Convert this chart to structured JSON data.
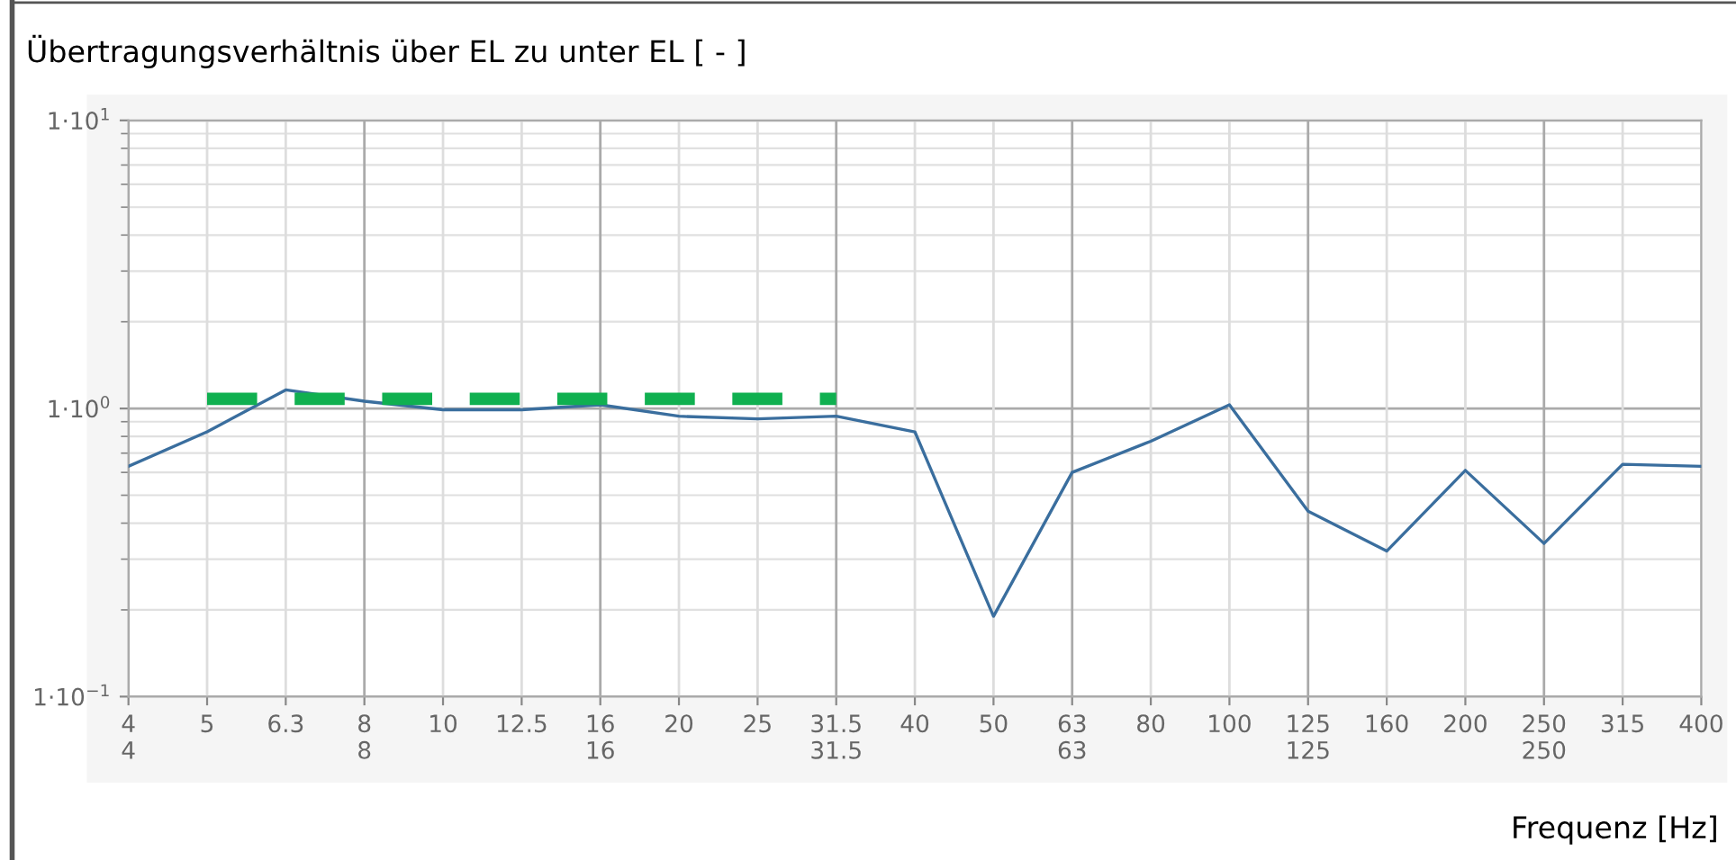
{
  "chart_data": {
    "type": "line",
    "title": "Übertragungsverhältnis über EL zu unter EL [ - ]",
    "xlabel": "Frequenz [Hz]",
    "categories": [
      "4\n4",
      "5",
      "6.3",
      "8\n8",
      "10",
      "12.5",
      "16\n16",
      "20",
      "25",
      "31.5\n31.5",
      "40",
      "50",
      "63\n63",
      "80",
      "100",
      "125\n125",
      "160",
      "200",
      "250\n250",
      "315",
      "400"
    ],
    "series": [
      {
        "color": "#3a6e9e",
        "values": [
          0.63,
          0.83,
          1.16,
          1.06,
          0.99,
          0.99,
          1.03,
          0.94,
          0.92,
          0.94,
          0.83,
          0.19,
          0.6,
          0.77,
          1.03,
          0.44,
          0.32,
          0.61,
          0.34,
          0.64,
          0.63
        ]
      },
      {
        "color": "#10b050",
        "line_style": "dashed",
        "values": [
          null,
          1.08,
          1.08,
          1.08,
          1.08,
          1.08,
          1.08,
          1.08,
          1.08,
          1.08,
          null,
          null,
          null,
          null,
          null,
          null,
          null,
          null,
          null,
          null,
          null
        ]
      }
    ],
    "log": "y",
    "ylim": [
      0.1,
      10
    ],
    "yticks": [
      {
        "value": 0.1,
        "label": "1·10$^{−1}$"
      },
      {
        "value": 1,
        "label": "1·10$^{0}$"
      },
      {
        "value": 10,
        "label": "1·10$^{1}$"
      }
    ],
    "grid": true,
    "marker": "none"
  }
}
